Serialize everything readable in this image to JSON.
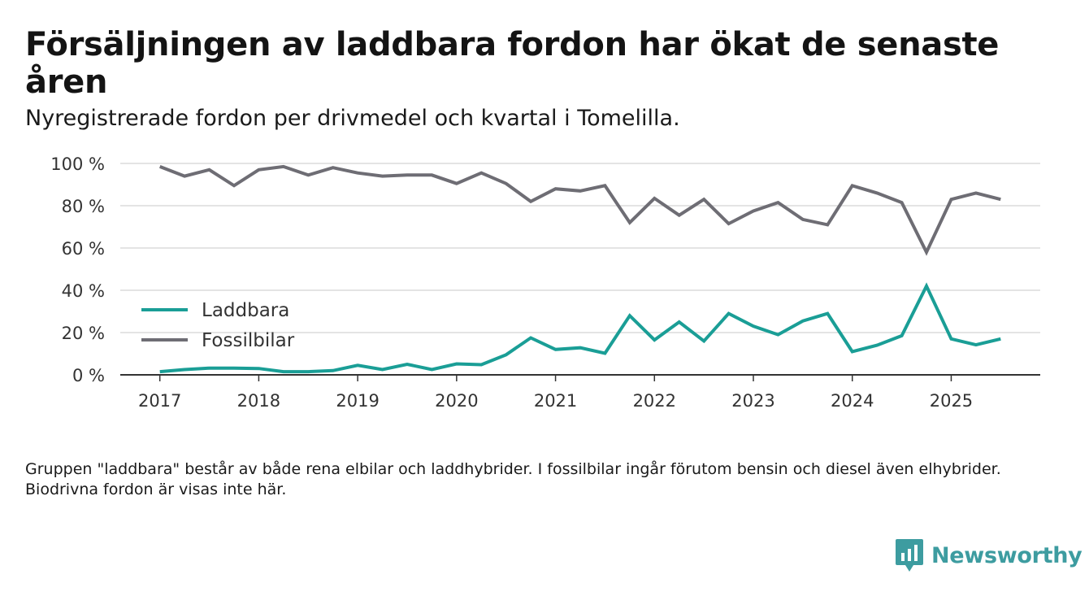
{
  "chart_data": {
    "type": "line",
    "title": "Försäljningen av laddbara fordon har ökat de senaste åren",
    "subtitle": "Nyregistrerade fordon per drivmedel och kvartal i Tomelilla.",
    "xlabel": "",
    "ylabel": "",
    "ylim": [
      0,
      100
    ],
    "yticks": [
      0,
      20,
      40,
      60,
      80,
      100
    ],
    "ytick_labels": [
      "0 %",
      "20 %",
      "40 %",
      "60 %",
      "80 %",
      "100 %"
    ],
    "xticks": [
      2017,
      2018,
      2019,
      2020,
      2021,
      2022,
      2023,
      2024,
      2025
    ],
    "xtick_labels": [
      "2017",
      "2018",
      "2019",
      "2020",
      "2021",
      "2022",
      "2023",
      "2024",
      "2025"
    ],
    "x": [
      2017.0,
      2017.25,
      2017.5,
      2017.75,
      2018.0,
      2018.25,
      2018.5,
      2018.75,
      2019.0,
      2019.25,
      2019.5,
      2019.75,
      2020.0,
      2020.25,
      2020.5,
      2020.75,
      2021.0,
      2021.25,
      2021.5,
      2021.75,
      2022.0,
      2022.25,
      2022.5,
      2022.75,
      2023.0,
      2023.25,
      2023.5,
      2023.75,
      2024.0,
      2024.25,
      2024.5,
      2024.75,
      2025.0,
      2025.25,
      2025.5
    ],
    "series": [
      {
        "name": "Laddbara",
        "color": "#1a9e96",
        "values": [
          1.5,
          2.5,
          3.2,
          3.2,
          3.0,
          1.5,
          1.5,
          2.0,
          4.5,
          2.5,
          5.0,
          2.5,
          5.2,
          4.8,
          9.5,
          17.5,
          12.0,
          12.8,
          10.2,
          28.0,
          16.5,
          25.0,
          16.0,
          29.0,
          23.0,
          19.0,
          25.5,
          29.0,
          11.0,
          14.0,
          18.5,
          42.0,
          17.0,
          14.2,
          17.0
        ]
      },
      {
        "name": "Fossilbilar",
        "color": "#6e6d74",
        "values": [
          98.5,
          94.0,
          97.0,
          89.5,
          97.0,
          98.5,
          94.5,
          98.0,
          95.5,
          94.0,
          94.5,
          94.5,
          90.5,
          95.5,
          90.5,
          82.0,
          88.0,
          87.0,
          89.5,
          72.0,
          83.5,
          75.5,
          83.0,
          71.5,
          77.5,
          81.5,
          73.5,
          71.0,
          89.5,
          86.0,
          81.5,
          58.0,
          83.0,
          86.0,
          83.0
        ]
      }
    ],
    "legend_position": "left, inside plot"
  },
  "footnote": "Gruppen \"laddbara\" består av både rena elbilar och laddhybrider. I fossilbilar ingår förutom bensin och diesel även elhybrider. Biodrivna fordon är visas inte här.",
  "brand": {
    "name": "Newsworthy",
    "color": "#3d9ca0"
  }
}
